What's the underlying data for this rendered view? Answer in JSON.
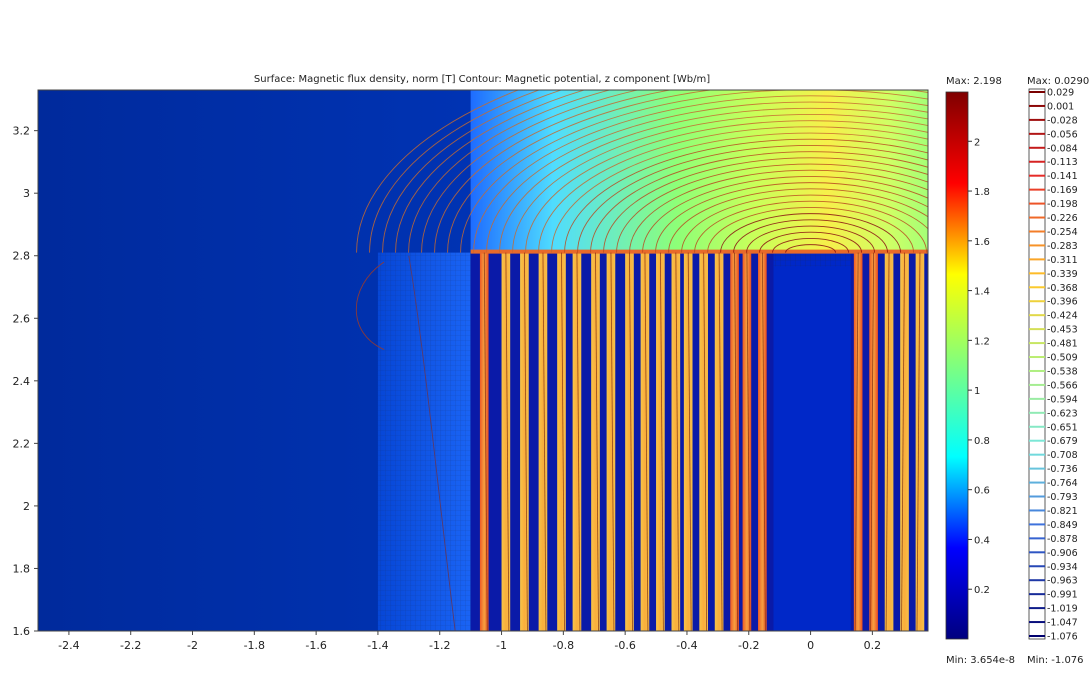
{
  "chart_data": {
    "type": "heatmap",
    "title": "Surface: Magnetic flux density, norm [T]    Contour: Magnetic potential, z component [Wb/m]",
    "xlim": [
      -2.5,
      0.38
    ],
    "ylim": [
      1.6,
      3.33
    ],
    "x_ticks": [
      "-2.4",
      "-2.2",
      "-2",
      "-1.8",
      "-1.6",
      "-1.4",
      "-1.2",
      "-1",
      "-0.8",
      "-0.6",
      "-0.4",
      "-0.2",
      "0",
      "0.2"
    ],
    "y_ticks": [
      "3.2",
      "3",
      "2.8",
      "2.6",
      "2.4",
      "2.2",
      "2",
      "1.8",
      "1.6"
    ],
    "grid": false,
    "surface_colorbar": {
      "max_label": "Max: 2.198",
      "min_label": "Min: 3.654e-8",
      "ticks": [
        "2",
        "1.8",
        "1.6",
        "1.4",
        "1.2",
        "1",
        "0.8",
        "0.6",
        "0.4",
        "0.2"
      ],
      "range": [
        0,
        2.198
      ],
      "colormap": [
        "#00007f",
        "#0000ff",
        "#00ffff",
        "#7fff7f",
        "#ffff00",
        "#ff0000",
        "#7f0000"
      ]
    },
    "contour_legend": {
      "max_label": "Max: 0.0290",
      "min_label": "Min: -1.076",
      "levels": [
        "0.029",
        "0.001",
        "-0.028",
        "-0.056",
        "-0.084",
        "-0.113",
        "-0.141",
        "-0.169",
        "-0.198",
        "-0.226",
        "-0.254",
        "-0.283",
        "-0.311",
        "-0.339",
        "-0.368",
        "-0.396",
        "-0.424",
        "-0.453",
        "-0.481",
        "-0.509",
        "-0.538",
        "-0.566",
        "-0.594",
        "-0.623",
        "-0.651",
        "-0.679",
        "-0.708",
        "-0.736",
        "-0.764",
        "-0.793",
        "-0.821",
        "-0.849",
        "-0.878",
        "-0.906",
        "-0.934",
        "-0.963",
        "-0.991",
        "-1.019",
        "-1.047",
        "-1.076"
      ]
    },
    "regions": {
      "air_gap_top": 2.81,
      "core_left_x": -1.1,
      "dark_center_x": [
        -0.12,
        0.13
      ],
      "strips_left": [
        -1.07,
        -1.0,
        -0.94,
        -0.88,
        -0.82,
        -0.77,
        -0.71,
        -0.66,
        -0.6,
        -0.55,
        -0.5,
        -0.45,
        -0.41,
        -0.36,
        -0.31,
        -0.26,
        -0.22,
        -0.17
      ],
      "strips_right": [
        0.14,
        0.19,
        0.24,
        0.29,
        0.34
      ],
      "strip_width": 0.028
    }
  }
}
